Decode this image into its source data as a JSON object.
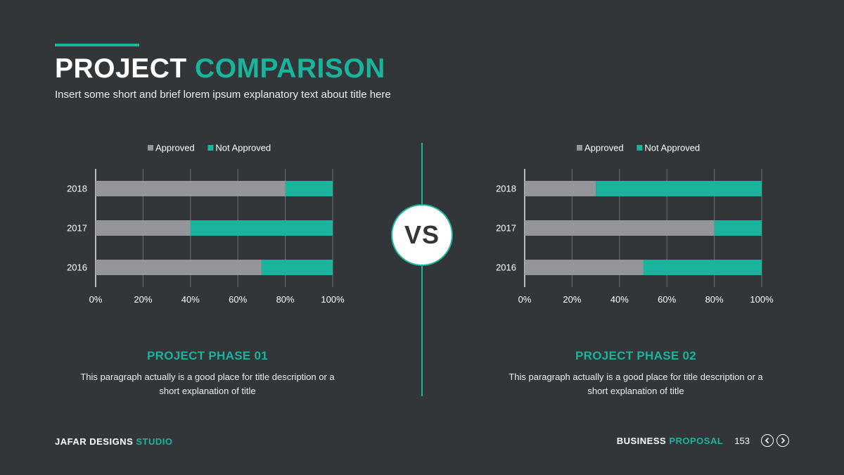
{
  "header": {
    "title_part1": "PROJECT",
    "title_part2": "COMPARISON",
    "subtitle": "Insert some short and brief lorem ipsum explanatory text about title here"
  },
  "vs_label": "VS",
  "colors": {
    "accent": "#1ab39c",
    "approved": "#939598",
    "background": "#323639"
  },
  "chart_data": [
    {
      "type": "bar",
      "orientation": "horizontal",
      "stacked": "percent",
      "categories": [
        "2018",
        "2017",
        "2016"
      ],
      "series": [
        {
          "name": "Approved",
          "values": [
            80,
            40,
            70
          ],
          "color": "#939598"
        },
        {
          "name": "Not Approved",
          "values": [
            20,
            60,
            30
          ],
          "color": "#1ab39c"
        }
      ],
      "xlim": [
        0,
        100
      ],
      "xticks": [
        "0%",
        "20%",
        "40%",
        "60%",
        "80%",
        "100%"
      ],
      "grid": true,
      "legend": "top"
    },
    {
      "type": "bar",
      "orientation": "horizontal",
      "stacked": "percent",
      "categories": [
        "2018",
        "2017",
        "2016"
      ],
      "series": [
        {
          "name": "Approved",
          "values": [
            30,
            80,
            50
          ],
          "color": "#939598"
        },
        {
          "name": "Not Approved",
          "values": [
            70,
            20,
            50
          ],
          "color": "#1ab39c"
        }
      ],
      "xlim": [
        0,
        100
      ],
      "xticks": [
        "0%",
        "20%",
        "40%",
        "60%",
        "80%",
        "100%"
      ],
      "grid": true,
      "legend": "top"
    }
  ],
  "phases": [
    {
      "title": "PROJECT PHASE 01",
      "description": "This paragraph actually is a good place for title description or a short explanation of title"
    },
    {
      "title": "PROJECT PHASE 02",
      "description": "This paragraph actually is a good place for title description or a short explanation of title"
    }
  ],
  "footer": {
    "left_part1": "JAFAR DESIGNS",
    "left_part2": "STUDIO",
    "right_part1": "BUSINESS",
    "right_part2": "PROPOSAL",
    "page_number": "153",
    "prev_icon": "chevron-left-icon",
    "next_icon": "chevron-right-icon"
  }
}
